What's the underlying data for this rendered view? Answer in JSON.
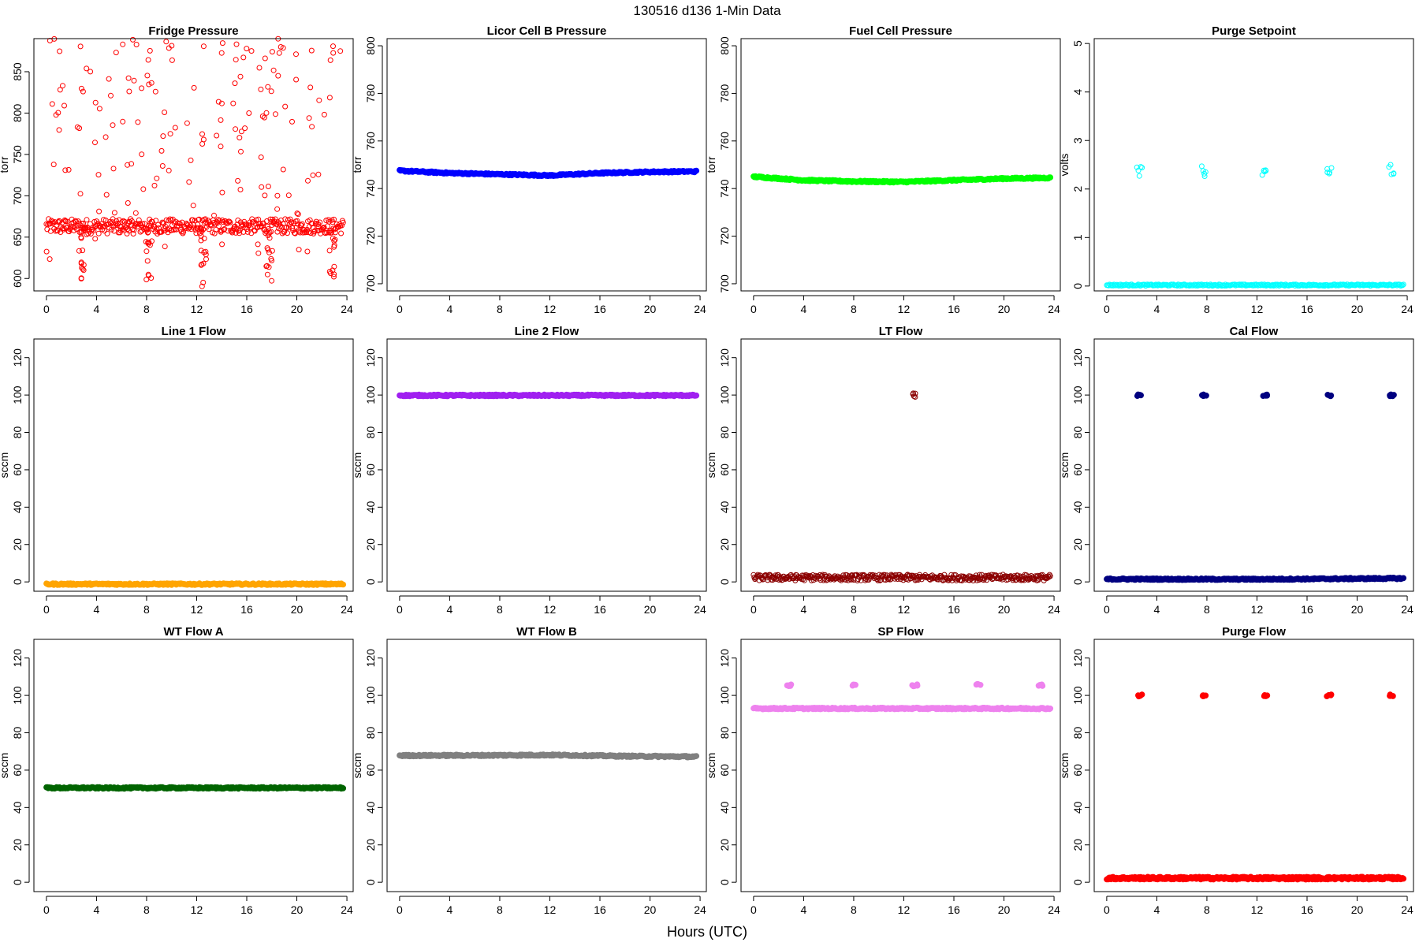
{
  "figure": {
    "title": "130516    d136    1-Min Data",
    "xlabel": "Hours (UTC)"
  },
  "chart_data": [
    {
      "type": "scatter",
      "title": "Fridge Pressure",
      "ylabel": "torr",
      "color": "#ff0000",
      "marker": "open-circle",
      "xlim": [
        -1,
        24.5
      ],
      "ylim": [
        585,
        890
      ],
      "xticks": [
        0,
        4,
        8,
        12,
        16,
        20,
        24
      ],
      "yticks": [
        600,
        650,
        700,
        750,
        800,
        850
      ],
      "series": [
        {
          "kind": "noisy",
          "base": 663,
          "noise": 9,
          "scatter_count": 170,
          "scatter_range": [
            600,
            890
          ],
          "dips": [
            [
              2.8,
              590
            ],
            [
              8.2,
              588
            ],
            [
              12.6,
              590
            ],
            [
              17.8,
              592
            ],
            [
              22.8,
              595
            ]
          ],
          "x_range": [
            0,
            23.7
          ]
        }
      ]
    },
    {
      "type": "scatter",
      "title": "Licor Cell B Pressure",
      "ylabel": "torr",
      "color": "#0000ff",
      "marker": "filled-circle",
      "xlim": [
        -1,
        24.5
      ],
      "ylim": [
        697,
        803
      ],
      "xticks": [
        0,
        4,
        8,
        12,
        16,
        20,
        24
      ],
      "yticks": [
        700,
        720,
        740,
        760,
        780,
        800
      ],
      "series": [
        {
          "kind": "line",
          "x": [
            0,
            4,
            8,
            12,
            16,
            20,
            23.7
          ],
          "y": [
            747.5,
            746.5,
            746,
            745.5,
            746.5,
            747,
            747.2
          ],
          "x_range": [
            0,
            23.7
          ]
        }
      ]
    },
    {
      "type": "scatter",
      "title": "Fuel Cell Pressure",
      "ylabel": "torr",
      "color": "#00ff00",
      "marker": "filled-circle",
      "xlim": [
        -1,
        24.5
      ],
      "ylim": [
        697,
        803
      ],
      "xticks": [
        0,
        4,
        8,
        12,
        16,
        20,
        24
      ],
      "yticks": [
        700,
        720,
        740,
        760,
        780,
        800
      ],
      "series": [
        {
          "kind": "line",
          "x": [
            0,
            4,
            8,
            12,
            16,
            20,
            23.7
          ],
          "y": [
            745,
            743.5,
            743,
            742.8,
            743.5,
            744.2,
            744.5
          ],
          "x_range": [
            0,
            23.7
          ]
        }
      ]
    },
    {
      "type": "scatter",
      "title": "Purge Setpoint",
      "ylabel": "volts",
      "color": "#00ffff",
      "marker": "open-circle",
      "xlim": [
        -1,
        24.5
      ],
      "ylim": [
        -0.1,
        5.1
      ],
      "xticks": [
        0,
        4,
        8,
        12,
        16,
        20,
        24
      ],
      "yticks": [
        0,
        1,
        2,
        3,
        4,
        5
      ],
      "series": [
        {
          "kind": "flat",
          "y": 0.02,
          "x_range": [
            0,
            23.7
          ]
        },
        {
          "kind": "clusters",
          "x": [
            2.6,
            7.8,
            12.6,
            17.8,
            22.7
          ],
          "y": 2.38,
          "spread": 0.12
        }
      ]
    },
    {
      "type": "scatter",
      "title": "Line 1 Flow",
      "ylabel": "sccm",
      "color": "#ffa500",
      "marker": "filled-circle",
      "xlim": [
        -1,
        24.5
      ],
      "ylim": [
        -5,
        130
      ],
      "xticks": [
        0,
        4,
        8,
        12,
        16,
        20,
        24
      ],
      "yticks": [
        0,
        20,
        40,
        60,
        80,
        100,
        120
      ],
      "series": [
        {
          "kind": "flat",
          "y": -1.2,
          "x_range": [
            0,
            23.7
          ]
        }
      ]
    },
    {
      "type": "scatter",
      "title": "Line 2 Flow",
      "ylabel": "sccm",
      "color": "#a020f0",
      "marker": "filled-circle",
      "xlim": [
        -1,
        24.5
      ],
      "ylim": [
        -5,
        130
      ],
      "xticks": [
        0,
        4,
        8,
        12,
        16,
        20,
        24
      ],
      "yticks": [
        0,
        20,
        40,
        60,
        80,
        100,
        120
      ],
      "series": [
        {
          "kind": "flat",
          "y": 99.8,
          "x_range": [
            0,
            23.7
          ]
        }
      ]
    },
    {
      "type": "scatter",
      "title": "LT Flow",
      "ylabel": "sccm",
      "color": "#8b0000",
      "marker": "open-circle",
      "xlim": [
        -1,
        24.5
      ],
      "ylim": [
        -5,
        130
      ],
      "xticks": [
        0,
        4,
        8,
        12,
        16,
        20,
        24
      ],
      "yticks": [
        0,
        20,
        40,
        60,
        80,
        100,
        120
      ],
      "series": [
        {
          "kind": "noisy",
          "base": 2.3,
          "noise": 1.6,
          "x_range": [
            0,
            23.7
          ]
        },
        {
          "kind": "clusters",
          "x": [
            12.8
          ],
          "y": 99.5,
          "spread": 1.5
        }
      ]
    },
    {
      "type": "scatter",
      "title": "Cal Flow",
      "ylabel": "sccm",
      "color": "#000080",
      "marker": "filled-circle",
      "xlim": [
        -1,
        24.5
      ],
      "ylim": [
        -5,
        130
      ],
      "xticks": [
        0,
        4,
        8,
        12,
        16,
        20,
        24
      ],
      "yticks": [
        0,
        20,
        40,
        60,
        80,
        100,
        120
      ],
      "series": [
        {
          "kind": "line",
          "x": [
            0,
            12,
            23.7
          ],
          "y": [
            1.5,
            1.4,
            1.9
          ],
          "x_range": [
            0,
            23.7
          ]
        },
        {
          "kind": "clusters",
          "x": [
            2.6,
            7.8,
            12.6,
            17.8,
            22.8
          ],
          "y": 99.9,
          "spread": 0.5
        }
      ]
    },
    {
      "type": "scatter",
      "title": "WT Flow A",
      "ylabel": "sccm",
      "color": "#006400",
      "marker": "filled-circle",
      "xlim": [
        -1,
        24.5
      ],
      "ylim": [
        -5,
        130
      ],
      "xticks": [
        0,
        4,
        8,
        12,
        16,
        20,
        24
      ],
      "yticks": [
        0,
        20,
        40,
        60,
        80,
        100,
        120
      ],
      "series": [
        {
          "kind": "flat",
          "y": 50.5,
          "x_range": [
            0,
            23.7
          ]
        }
      ]
    },
    {
      "type": "scatter",
      "title": "WT Flow B",
      "ylabel": "sccm",
      "color": "#808080",
      "marker": "filled-circle",
      "xlim": [
        -1,
        24.5
      ],
      "ylim": [
        -5,
        130
      ],
      "xticks": [
        0,
        4,
        8,
        12,
        16,
        20,
        24
      ],
      "yticks": [
        0,
        20,
        40,
        60,
        80,
        100,
        120
      ],
      "series": [
        {
          "kind": "line",
          "x": [
            0,
            6,
            12,
            18,
            23.7
          ],
          "y": [
            67.8,
            67.9,
            68.1,
            67.5,
            67.2
          ],
          "x_range": [
            0,
            23.7
          ]
        }
      ]
    },
    {
      "type": "scatter",
      "title": "SP Flow",
      "ylabel": "sccm",
      "color": "#ee82ee",
      "marker": "filled-circle",
      "xlim": [
        -1,
        24.5
      ],
      "ylim": [
        -5,
        130
      ],
      "xticks": [
        0,
        4,
        8,
        12,
        16,
        20,
        24
      ],
      "yticks": [
        0,
        20,
        40,
        60,
        80,
        100,
        120
      ],
      "series": [
        {
          "kind": "flat",
          "y": 93,
          "x_range": [
            0,
            23.7
          ]
        },
        {
          "kind": "clusters",
          "x": [
            2.8,
            8.0,
            12.9,
            18.0,
            22.9
          ],
          "y": 105.5,
          "spread": 0.6
        }
      ]
    },
    {
      "type": "scatter",
      "title": "Purge Flow",
      "ylabel": "sccm",
      "color": "#ff0000",
      "marker": "filled-circle",
      "xlim": [
        -1,
        24.5
      ],
      "ylim": [
        -5,
        130
      ],
      "xticks": [
        0,
        4,
        8,
        12,
        16,
        20,
        24
      ],
      "yticks": [
        0,
        20,
        40,
        60,
        80,
        100,
        120
      ],
      "series": [
        {
          "kind": "noisy",
          "base": 2.2,
          "noise": 0.7,
          "x_range": [
            0,
            23.7
          ]
        },
        {
          "kind": "clusters",
          "x": [
            2.6,
            7.8,
            12.6,
            17.8,
            22.7
          ],
          "y": 100,
          "spread": 0.5
        }
      ]
    }
  ]
}
